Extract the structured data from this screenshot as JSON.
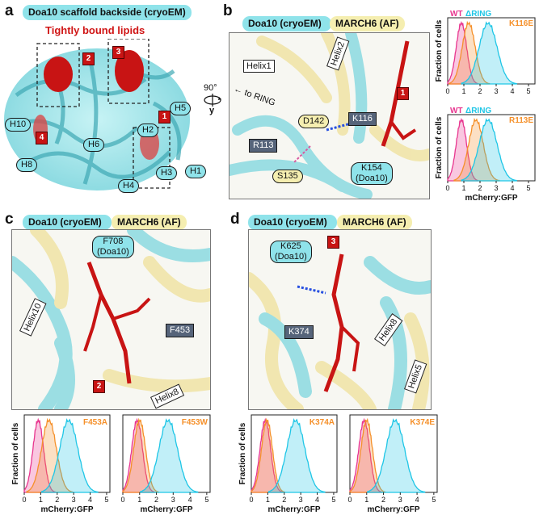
{
  "panels": {
    "a": {
      "letter": "a",
      "title": "Doa10 scaffold backside (cryoEM)",
      "subtitle": "Tightly bound lipids",
      "helices": [
        "H5",
        "H10",
        "H6",
        "H2",
        "H8",
        "H1",
        "H3",
        "H4"
      ],
      "markers": [
        "2",
        "3",
        "1",
        "4"
      ],
      "rotation": "90°",
      "axis": "y"
    },
    "b": {
      "letter": "b",
      "legend_doa10": "Doa10 (cryoEM)",
      "legend_march6": "MARCH6 (AF)",
      "labels": {
        "helix1": "Helix1",
        "helix2": "Helix2",
        "to_ring": "to RING",
        "d142": "D142",
        "k116": "K116",
        "r113": "R113",
        "k154": "K154\n(Doa10)",
        "s135": "S135",
        "marker1": "1"
      }
    },
    "c": {
      "letter": "c",
      "legend_doa10": "Doa10 (cryoEM)",
      "legend_march6": "MARCH6 (AF)",
      "labels": {
        "f708": "F708\n(Doa10)",
        "helix10": "Helix10",
        "f453": "F453",
        "helix8": "Helix8",
        "marker2": "2"
      }
    },
    "d": {
      "letter": "d",
      "legend_doa10": "Doa10 (cryoEM)",
      "legend_march6": "MARCH6 (AF)",
      "labels": {
        "k625": "K625\n(Doa10)",
        "k374": "K374",
        "helix8": "Helix8",
        "helix5": "Helix5",
        "marker3": "3"
      }
    }
  },
  "colors": {
    "wt": "#e8368f",
    "dring": "#1fc6e6",
    "mutant": "#f5902a",
    "doa10": "#8fe3ea",
    "march6": "#f5eeb0",
    "lipid": "#c81414"
  },
  "chart_data": [
    {
      "type": "area",
      "id": "b1",
      "legend": [
        "WT",
        "ΔRING",
        "K116E"
      ],
      "xlabel": "",
      "ylabel": "Fraction of cells",
      "x_ticks": [
        "0",
        "1",
        "2",
        "3",
        "4",
        "5"
      ],
      "xlim": [
        0,
        5.4
      ],
      "series": [
        {
          "name": "WT",
          "peak": 0.85,
          "width": 0.32,
          "color": "#e8368f"
        },
        {
          "name": "K116E",
          "peak": 1.3,
          "width": 0.4,
          "color": "#f5902a"
        },
        {
          "name": "ΔRING",
          "peak": 2.5,
          "width": 0.55,
          "color": "#1fc6e6"
        }
      ]
    },
    {
      "type": "area",
      "id": "b2",
      "legend": [
        "WT",
        "ΔRING",
        "R113E"
      ],
      "xlabel": "mCherry:GFP",
      "ylabel": "Fraction of cells",
      "x_ticks": [
        "0",
        "1",
        "2",
        "3",
        "4",
        "5"
      ],
      "xlim": [
        0,
        5.4
      ],
      "series": [
        {
          "name": "WT",
          "peak": 0.85,
          "width": 0.32,
          "color": "#e8368f"
        },
        {
          "name": "R113E",
          "peak": 1.75,
          "width": 0.45,
          "color": "#f5902a"
        },
        {
          "name": "ΔRING",
          "peak": 2.5,
          "width": 0.55,
          "color": "#1fc6e6"
        }
      ]
    },
    {
      "type": "area",
      "id": "c1",
      "legend": [
        "F453A"
      ],
      "xlabel": "mCherry:GFP",
      "ylabel": "Fraction of cells",
      "x_ticks": [
        "0",
        "1",
        "2",
        "3",
        "4",
        "5"
      ],
      "xlim": [
        0,
        5.2
      ],
      "series": [
        {
          "name": "WT",
          "peak": 0.85,
          "width": 0.32,
          "color": "#e8368f"
        },
        {
          "name": "F453A",
          "peak": 1.5,
          "width": 0.45,
          "color": "#f5902a"
        },
        {
          "name": "ΔRING",
          "peak": 2.7,
          "width": 0.55,
          "color": "#1fc6e6"
        }
      ]
    },
    {
      "type": "area",
      "id": "c2",
      "legend": [
        "F453W"
      ],
      "xlabel": "mCherry:GFP",
      "ylabel": "",
      "x_ticks": [
        "0",
        "1",
        "2",
        "3",
        "4",
        "5"
      ],
      "xlim": [
        0,
        5.2
      ],
      "series": [
        {
          "name": "WT",
          "peak": 0.85,
          "width": 0.32,
          "color": "#e8368f"
        },
        {
          "name": "F453W",
          "peak": 1.0,
          "width": 0.35,
          "color": "#f5902a"
        },
        {
          "name": "ΔRING",
          "peak": 2.7,
          "width": 0.55,
          "color": "#1fc6e6"
        }
      ]
    },
    {
      "type": "area",
      "id": "d1",
      "legend": [
        "K374A"
      ],
      "xlabel": "mCherry:GFP",
      "ylabel": "Fraction of cells",
      "x_ticks": [
        "0",
        "1",
        "2",
        "3",
        "4",
        "5"
      ],
      "xlim": [
        0,
        5.2
      ],
      "series": [
        {
          "name": "WT",
          "peak": 0.85,
          "width": 0.32,
          "color": "#e8368f"
        },
        {
          "name": "K374A",
          "peak": 0.95,
          "width": 0.33,
          "color": "#f5902a"
        },
        {
          "name": "ΔRING",
          "peak": 2.7,
          "width": 0.55,
          "color": "#1fc6e6"
        }
      ]
    },
    {
      "type": "area",
      "id": "d2",
      "legend": [
        "K374E"
      ],
      "xlabel": "mCherry:GFP",
      "ylabel": "",
      "x_ticks": [
        "0",
        "1",
        "2",
        "3",
        "4",
        "5"
      ],
      "xlim": [
        0,
        5.2
      ],
      "series": [
        {
          "name": "WT",
          "peak": 0.85,
          "width": 0.32,
          "color": "#e8368f"
        },
        {
          "name": "K374E",
          "peak": 1.0,
          "width": 0.34,
          "color": "#f5902a"
        },
        {
          "name": "ΔRING",
          "peak": 2.7,
          "width": 0.55,
          "color": "#1fc6e6"
        }
      ]
    }
  ]
}
